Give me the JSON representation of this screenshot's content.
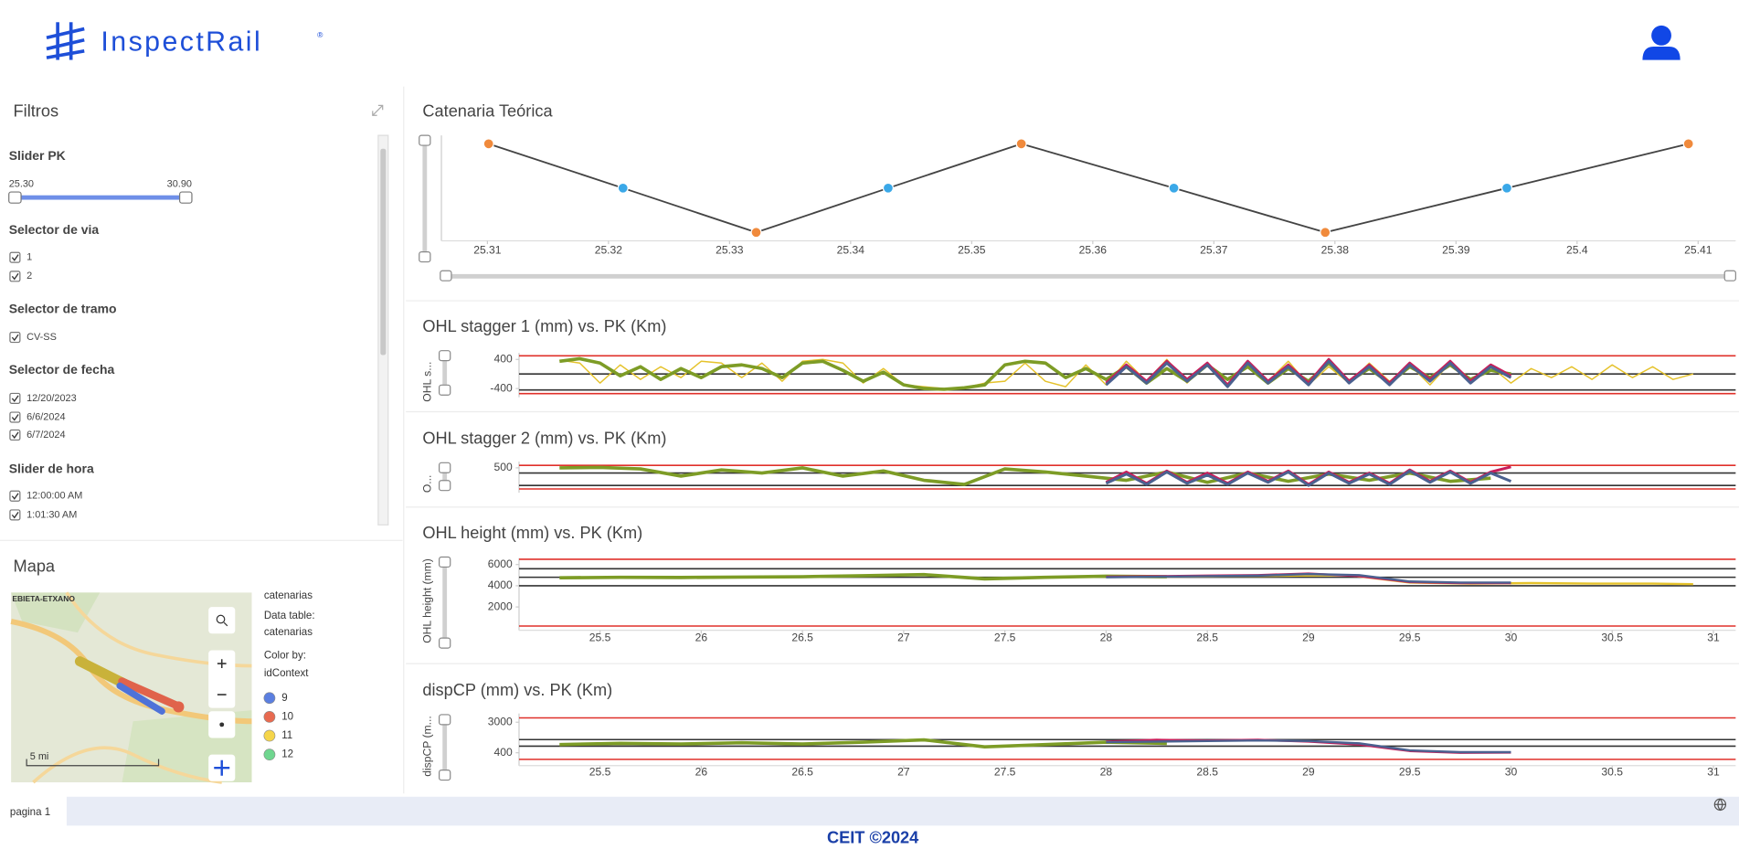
{
  "header": {
    "logo": "InspectRail",
    "logo_mark": "®"
  },
  "filters": {
    "title": "Filtros",
    "pk_slider": {
      "label": "Slider PK",
      "min": "25.30",
      "max": "30.90"
    },
    "track_selector": {
      "label": "Selector de via",
      "options": [
        "1",
        "2"
      ]
    },
    "section_selector": {
      "label": "Selector de tramo",
      "options": [
        "CV-SS"
      ]
    },
    "date_selector": {
      "label": "Selector de fecha",
      "options": [
        "12/20/2023",
        "6/6/2024",
        "6/7/2024"
      ]
    },
    "time_slider": {
      "label": "Slider de hora",
      "options": [
        "12:00:00 AM",
        "1:01:30 AM"
      ]
    }
  },
  "map": {
    "title": "Mapa",
    "place": "EBIETA-ETXANO",
    "scale": "5 mi",
    "info": [
      "catenarias",
      "Data table:",
      "catenarias",
      "Color by:",
      "idContext"
    ],
    "legend": [
      {
        "label": "9",
        "color": "#5b7fe0"
      },
      {
        "label": "10",
        "color": "#e86a50"
      },
      {
        "label": "11",
        "color": "#f5d54a"
      },
      {
        "label": "12",
        "color": "#6fd68f"
      }
    ]
  },
  "footer": {
    "page_tab": "pagina 1",
    "copyright": "CEIT ©2024"
  },
  "chart_data": [
    {
      "type": "line",
      "title": "Catenaria Teórica",
      "x": [
        25.3101,
        25.3212,
        25.3322,
        25.3431,
        25.3541,
        25.3667,
        25.3792,
        25.3942,
        25.4092
      ],
      "xlim": [
        25.3062,
        25.4131
      ],
      "xticks": [
        25.31,
        25.32,
        25.33,
        25.34,
        25.35,
        25.36,
        25.37,
        25.38,
        25.39,
        25.4,
        25.41
      ],
      "ylim": [
        -1.19,
        1.19
      ],
      "series": [
        {
          "color": "#444444",
          "values": [
            1,
            0,
            -1,
            0,
            1,
            0,
            -1,
            0,
            1
          ],
          "marker_colors": [
            "#f08a3c",
            "#3aa8e8",
            "#f08a3c",
            "#3aa8e8",
            "#f08a3c",
            "#3aa8e8",
            "#f08a3c",
            "#3aa8e8",
            "#f08a3c"
          ]
        }
      ]
    },
    {
      "type": "line",
      "title": "OHL stagger 1 (mm) vs. PK (Km)",
      "y_label": "OHL s...",
      "xlim": [
        25.1,
        31.11
      ],
      "ylim": [
        -640,
        580
      ],
      "yticks": [
        400,
        -400
      ],
      "hlines": [
        {
          "value": 500,
          "color": "#e0302a"
        },
        {
          "value": 0,
          "color": "#333333"
        },
        {
          "value": -440,
          "color": "#333333"
        },
        {
          "value": -540,
          "color": "#e0302a"
        }
      ],
      "series": [
        {
          "color": "#e5c22b",
          "width": 1.2,
          "x": [
            25.3,
            25.4,
            25.5,
            25.6,
            25.7,
            25.8,
            25.9,
            26,
            26.1,
            26.2,
            26.3,
            26.4,
            26.5,
            26.6,
            26.7,
            26.8,
            26.9,
            27,
            27.1,
            27.2,
            27.3,
            27.4,
            27.5,
            27.6,
            27.7,
            27.8,
            27.9,
            28,
            28.1,
            28.2,
            28.3,
            28.4,
            28.5,
            28.6,
            28.7,
            28.8,
            28.9,
            29,
            29.1,
            29.2,
            29.3,
            29.4,
            29.5,
            29.6,
            29.7,
            29.8,
            29.9,
            30,
            30.1,
            30.2,
            30.3,
            30.4,
            30.5,
            30.6,
            30.7,
            30.8,
            30.9
          ],
          "values": [
            380,
            300,
            -250,
            250,
            -150,
            200,
            -100,
            350,
            300,
            -100,
            300,
            -200,
            350,
            400,
            300,
            -250,
            150,
            -300,
            -350,
            -400,
            -380,
            -250,
            -200,
            300,
            -200,
            -350,
            250,
            -300,
            350,
            -200,
            400,
            -250,
            300,
            -300,
            250,
            -200,
            350,
            -300,
            200,
            -250,
            300,
            -200,
            250,
            -300,
            300,
            -150,
            200,
            -250,
            150,
            -100,
            200,
            -150,
            250,
            -100,
            200,
            -150,
            0
          ]
        },
        {
          "color": "#7d9c26",
          "width": 3,
          "x": [
            25.3,
            25.4,
            25.5,
            25.6,
            25.7,
            25.8,
            25.9,
            26,
            26.1,
            26.2,
            26.3,
            26.4,
            26.5,
            26.6,
            26.7,
            26.8,
            26.9,
            27,
            27.1,
            27.2,
            27.3,
            27.4,
            27.5,
            27.6,
            27.7,
            27.8,
            27.9,
            28,
            28.1,
            28.2,
            28.3,
            28.4,
            28.5,
            28.6,
            28.7,
            28.8,
            28.9,
            29,
            29.1,
            29.2,
            29.3,
            29.4,
            29.5,
            29.6,
            29.7,
            29.8,
            29.9,
            30
          ],
          "values": [
            350,
            420,
            300,
            -50,
            200,
            -150,
            150,
            -100,
            200,
            250,
            150,
            -100,
            300,
            350,
            100,
            -200,
            50,
            -300,
            -400,
            -420,
            -380,
            -300,
            250,
            350,
            300,
            -100,
            150,
            -150,
            200,
            -250,
            150,
            -200,
            250,
            -150,
            200,
            -250,
            150,
            -200,
            300,
            -200,
            150,
            -250,
            200,
            -100,
            250,
            -150,
            100,
            0
          ]
        },
        {
          "color": "#c81e5a",
          "width": 2.5,
          "x": [
            28,
            28.1,
            28.2,
            28.3,
            28.4,
            28.5,
            28.6,
            28.7,
            28.8,
            28.9,
            29,
            29.1,
            29.2,
            29.3,
            29.4,
            29.5,
            29.6,
            29.7,
            29.8,
            29.9,
            30
          ],
          "values": [
            -250,
            250,
            -200,
            350,
            -150,
            300,
            -300,
            350,
            -200,
            250,
            -250,
            400,
            -200,
            250,
            -250,
            300,
            -150,
            350,
            -200,
            250,
            -50
          ]
        },
        {
          "color": "#4b6190",
          "width": 2.5,
          "x": [
            28,
            28.1,
            28.2,
            28.3,
            28.4,
            28.5,
            28.6,
            28.7,
            28.8,
            28.9,
            29,
            29.1,
            29.2,
            29.3,
            29.4,
            29.5,
            29.6,
            29.7,
            29.8,
            29.9,
            30
          ],
          "values": [
            -300,
            200,
            -250,
            300,
            -200,
            250,
            -350,
            300,
            -250,
            200,
            -300,
            350,
            -250,
            200,
            -300,
            250,
            -200,
            300,
            -250,
            200,
            -100
          ]
        }
      ]
    },
    {
      "type": "line",
      "title": "OHL stagger 2 (mm) vs. PK (Km)",
      "y_label": "O...",
      "xlim": [
        25.1,
        31.11
      ],
      "ylim": [
        -700,
        800
      ],
      "yticks": [
        500
      ],
      "hlines": [
        {
          "value": 620,
          "color": "#e0302a"
        },
        {
          "value": 250,
          "color": "#333333"
        },
        {
          "value": -350,
          "color": "#333333"
        },
        {
          "value": -520,
          "color": "#e0302a"
        }
      ],
      "series": [
        {
          "color": "#7d9c26",
          "width": 3,
          "x": [
            25.3,
            25.5,
            25.7,
            25.9,
            26.1,
            26.3,
            26.5,
            26.7,
            26.9,
            27.1,
            27.3,
            27.5,
            27.7,
            27.9,
            28.1,
            28.3,
            28.5,
            28.7,
            28.9,
            29.1,
            29.3,
            29.5,
            29.7,
            29.9
          ],
          "values": [
            500,
            520,
            450,
            100,
            400,
            250,
            500,
            100,
            350,
            -100,
            -300,
            450,
            300,
            100,
            -100,
            300,
            -200,
            250,
            -150,
            200,
            -100,
            250,
            -150,
            0
          ]
        },
        {
          "color": "#c81e5a",
          "width": 2.5,
          "x": [
            28,
            28.1,
            28.2,
            28.3,
            28.4,
            28.5,
            28.6,
            28.7,
            28.8,
            28.9,
            29,
            29.1,
            29.2,
            29.3,
            29.4,
            29.5,
            29.6,
            29.7,
            29.8,
            29.9,
            30
          ],
          "values": [
            -200,
            300,
            -250,
            350,
            -200,
            250,
            -250,
            300,
            -150,
            350,
            -300,
            300,
            -200,
            250,
            -250,
            400,
            -150,
            350,
            -200,
            300,
            550
          ]
        },
        {
          "color": "#4b6190",
          "width": 2.5,
          "x": [
            28,
            28.1,
            28.2,
            28.3,
            28.4,
            28.5,
            28.6,
            28.7,
            28.8,
            28.9,
            29,
            29.1,
            29.2,
            29.3,
            29.4,
            29.5,
            29.6,
            29.7,
            29.8,
            29.9,
            30
          ],
          "values": [
            -250,
            200,
            -300,
            300,
            -250,
            150,
            -300,
            250,
            -200,
            300,
            -350,
            250,
            -250,
            200,
            -300,
            350,
            -200,
            300,
            -250,
            250,
            -150
          ]
        }
      ]
    },
    {
      "type": "line",
      "title": "OHL height (mm) vs. PK (Km)",
      "y_label": "OHL height (mm)",
      "xlim": [
        25.1,
        31.11
      ],
      "xticks": [
        25.5,
        26,
        26.5,
        27,
        27.5,
        28,
        28.5,
        29,
        29.5,
        30,
        30.5,
        31
      ],
      "ylim": [
        -200,
        6600
      ],
      "yticks": [
        6000,
        4000,
        2000
      ],
      "hlines": [
        {
          "value": 6500,
          "color": "#e0302a"
        },
        {
          "value": 5600,
          "color": "#333333"
        },
        {
          "value": 4800,
          "color": "#333333"
        },
        {
          "value": 4000,
          "color": "#333333"
        },
        {
          "value": 200,
          "color": "#e0302a"
        }
      ],
      "series": [
        {
          "color": "#e5c22b",
          "width": 2,
          "x": [
            28.3,
            28.6,
            28.9,
            29.2,
            29.5,
            29.8,
            30.1,
            30.4,
            30.7,
            30.9
          ],
          "values": [
            4850,
            4900,
            4950,
            5000,
            4300,
            4200,
            4250,
            4200,
            4200,
            4150
          ]
        },
        {
          "color": "#7d9c26",
          "width": 3,
          "x": [
            25.3,
            25.6,
            25.9,
            26.2,
            26.5,
            26.8,
            27.1,
            27.4,
            27.7,
            28,
            28.3
          ],
          "values": [
            4750,
            4800,
            4780,
            4820,
            4850,
            4950,
            5050,
            4650,
            4800,
            4900,
            4850
          ]
        },
        {
          "color": "#c81e5a",
          "width": 2,
          "x": [
            28,
            28.25,
            28.5,
            28.75,
            29,
            29.25,
            29.5,
            29.75,
            30
          ],
          "values": [
            4850,
            4900,
            4950,
            5000,
            5150,
            4900,
            4350,
            4250,
            4250
          ]
        },
        {
          "color": "#4b6190",
          "width": 2,
          "x": [
            28,
            28.25,
            28.5,
            28.75,
            29,
            29.25,
            29.5,
            29.75,
            30
          ],
          "values": [
            4800,
            4850,
            4900,
            4950,
            5100,
            5000,
            4400,
            4300,
            4300
          ]
        }
      ]
    },
    {
      "type": "line",
      "title": "dispCP (mm) vs. PK (Km)",
      "y_label": "dispCP (m...",
      "xlim": [
        25.1,
        31.11
      ],
      "xticks": [
        25.5,
        26,
        26.5,
        27,
        27.5,
        28,
        28.5,
        29,
        29.5,
        30,
        30.5,
        31
      ],
      "ylim": [
        -700,
        3740
      ],
      "yticks": [
        3000,
        400
      ],
      "hlines": [
        {
          "value": 3370,
          "color": "#e0302a"
        },
        {
          "value": 1520,
          "color": "#333333"
        },
        {
          "value": 960,
          "color": "#333333"
        },
        {
          "value": -160,
          "color": "#e0302a"
        }
      ],
      "series": [
        {
          "color": "#7d9c26",
          "width": 3,
          "x": [
            25.3,
            25.6,
            25.9,
            26.2,
            26.5,
            26.8,
            27.1,
            27.4,
            27.7,
            28,
            28.3
          ],
          "values": [
            1100,
            1200,
            1150,
            1250,
            1150,
            1300,
            1500,
            900,
            1100,
            1300,
            1200
          ]
        },
        {
          "color": "#c81e5a",
          "width": 2,
          "x": [
            28,
            28.25,
            28.5,
            28.75,
            29,
            29.25,
            29.5,
            29.75,
            30
          ],
          "values": [
            1350,
            1500,
            1450,
            1500,
            1350,
            1100,
            550,
            400,
            420
          ]
        },
        {
          "color": "#4b6190",
          "width": 2,
          "x": [
            28,
            28.25,
            28.5,
            28.75,
            29,
            29.25,
            29.5,
            29.75,
            30
          ],
          "values": [
            1300,
            1350,
            1400,
            1450,
            1400,
            1200,
            600,
            450,
            450
          ]
        }
      ]
    }
  ]
}
